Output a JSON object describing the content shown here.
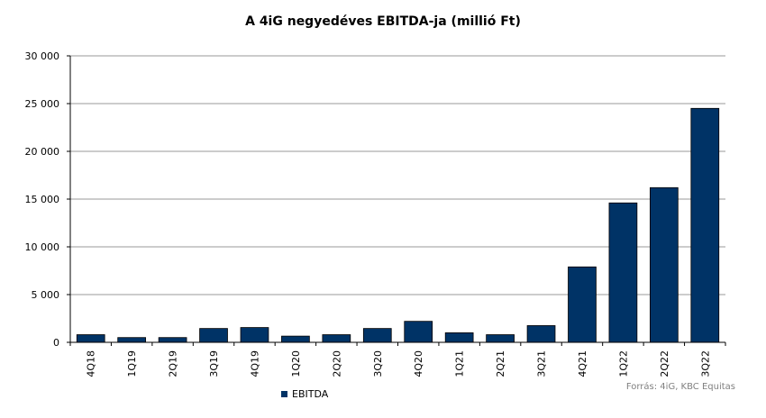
{
  "chart_data": {
    "type": "bar",
    "title": "A 4iG negyedéves EBITDA-ja (millió Ft)",
    "categories": [
      "4Q18",
      "1Q19",
      "2Q19",
      "3Q19",
      "4Q19",
      "1Q20",
      "2Q20",
      "3Q20",
      "4Q20",
      "1Q21",
      "2Q21",
      "3Q21",
      "4Q21",
      "1Q22",
      "2Q22",
      "3Q22"
    ],
    "series": [
      {
        "name": "EBITDA",
        "color": "#003366",
        "values": [
          800,
          500,
          500,
          1450,
          1550,
          650,
          800,
          1450,
          2200,
          1000,
          800,
          1750,
          7900,
          14600,
          16200,
          24500
        ]
      }
    ],
    "ylim": [
      0,
      30000
    ],
    "yticks": [
      0,
      5000,
      10000,
      15000,
      20000,
      25000,
      30000
    ],
    "ytick_labels": [
      "0",
      "5 000",
      "10 000",
      "15 000",
      "20 000",
      "25 000",
      "30 000"
    ],
    "grid": true,
    "legend_position": "bottom-left"
  },
  "source_note": "Forrás: 4iG, KBC Equitas"
}
